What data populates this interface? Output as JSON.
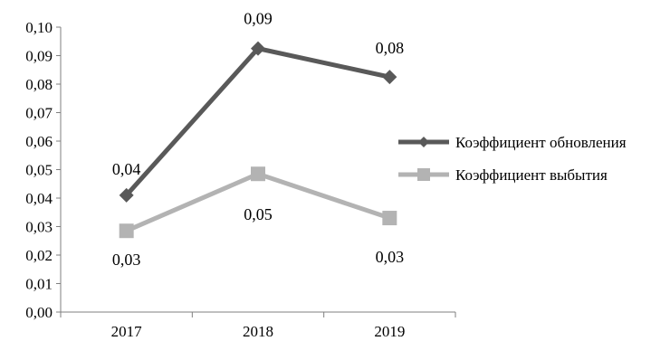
{
  "chart_data": {
    "type": "line",
    "categories": [
      "2017",
      "2018",
      "2019"
    ],
    "ylim": [
      0,
      0.1
    ],
    "y_ticks": [
      "0,00",
      "0,01",
      "0,02",
      "0,03",
      "0,04",
      "0,05",
      "0,06",
      "0,07",
      "0,08",
      "0,09",
      "0,10"
    ],
    "grid": false,
    "legend_position": "right",
    "series": [
      {
        "name": "Коэффициент обновления",
        "values": [
          0.041,
          0.0925,
          0.0825
        ],
        "labels": [
          "0,04",
          "0,09",
          "0,08"
        ],
        "color": "#595959",
        "marker": "diamond"
      },
      {
        "name": "Коэффициент выбытия",
        "values": [
          0.0285,
          0.0485,
          0.033
        ],
        "labels": [
          "0,03",
          "0,05",
          "0,03"
        ],
        "color": "#b3b3b3",
        "marker": "square"
      }
    ]
  }
}
